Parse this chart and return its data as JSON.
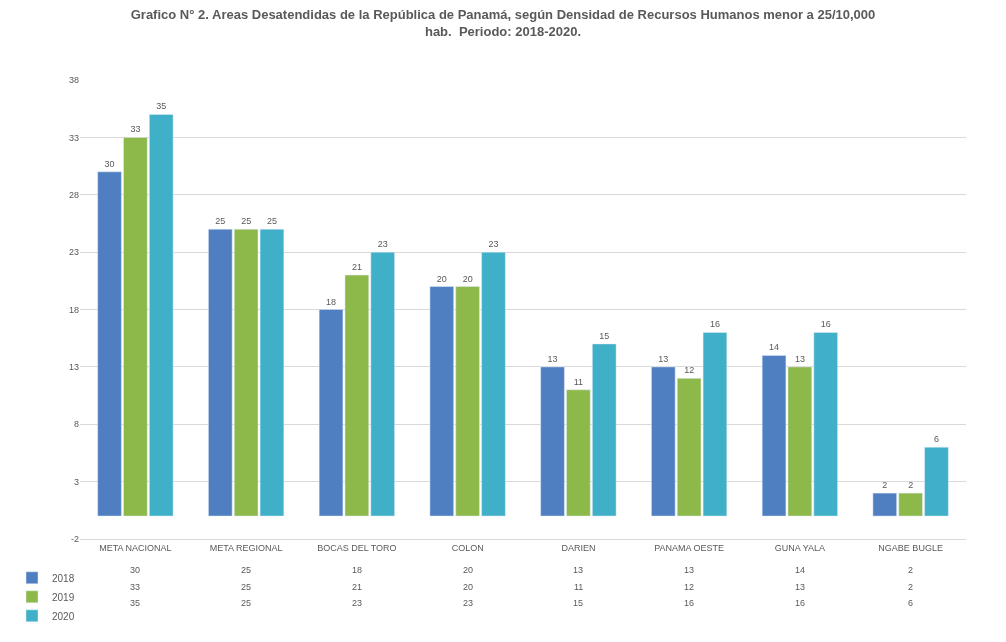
{
  "chart_data": {
    "type": "bar",
    "title": "Grafico N° 2. Areas Desatendidas de la República de Panamá, según Densidad de Recursos Humanos menor a 25/10,000 hab.  Periodo: 2018-2020.",
    "categories": [
      "META NACIONAL",
      "META REGIONAL",
      "BOCAS DEL TORO",
      "COLON",
      "DARIEN",
      "PANAMA OESTE",
      "GUNA YALA",
      "NGABE BUGLE"
    ],
    "series": [
      {
        "name": "2018",
        "color": "#4f7fc1",
        "values": [
          30,
          25,
          18,
          20,
          13,
          13,
          14,
          2
        ],
        "value_labels": [
          "30",
          "25",
          "18",
          "20",
          "13",
          "13",
          "14",
          "2"
        ]
      },
      {
        "name": "2019",
        "color": "#8db84a",
        "values": [
          33,
          25,
          21,
          20,
          11,
          12,
          13,
          2
        ],
        "value_labels": [
          "33",
          "25",
          "21",
          "20",
          "11",
          "12",
          "13",
          "2"
        ]
      },
      {
        "name": "2020",
        "color": "#3fb0c8",
        "values": [
          35,
          25,
          23,
          23,
          15,
          16,
          16,
          6
        ],
        "value_labels": [
          "35",
          "25",
          "23",
          "23",
          "15",
          "16",
          "16",
          "6"
        ]
      }
    ],
    "ylim": [
      -2,
      38
    ],
    "yticks": [
      -2,
      3,
      8,
      13,
      18,
      23,
      28,
      33,
      38
    ],
    "grid": "y",
    "legend": "bottom left",
    "annotations": [
      "30",
      "25",
      "18",
      "20",
      "13",
      "13",
      "14",
      "2",
      "33",
      "25",
      "21",
      "20",
      "11",
      "12",
      "13",
      "2",
      "35",
      "25",
      "23",
      "23",
      "15",
      "16",
      "16",
      "6"
    ]
  }
}
